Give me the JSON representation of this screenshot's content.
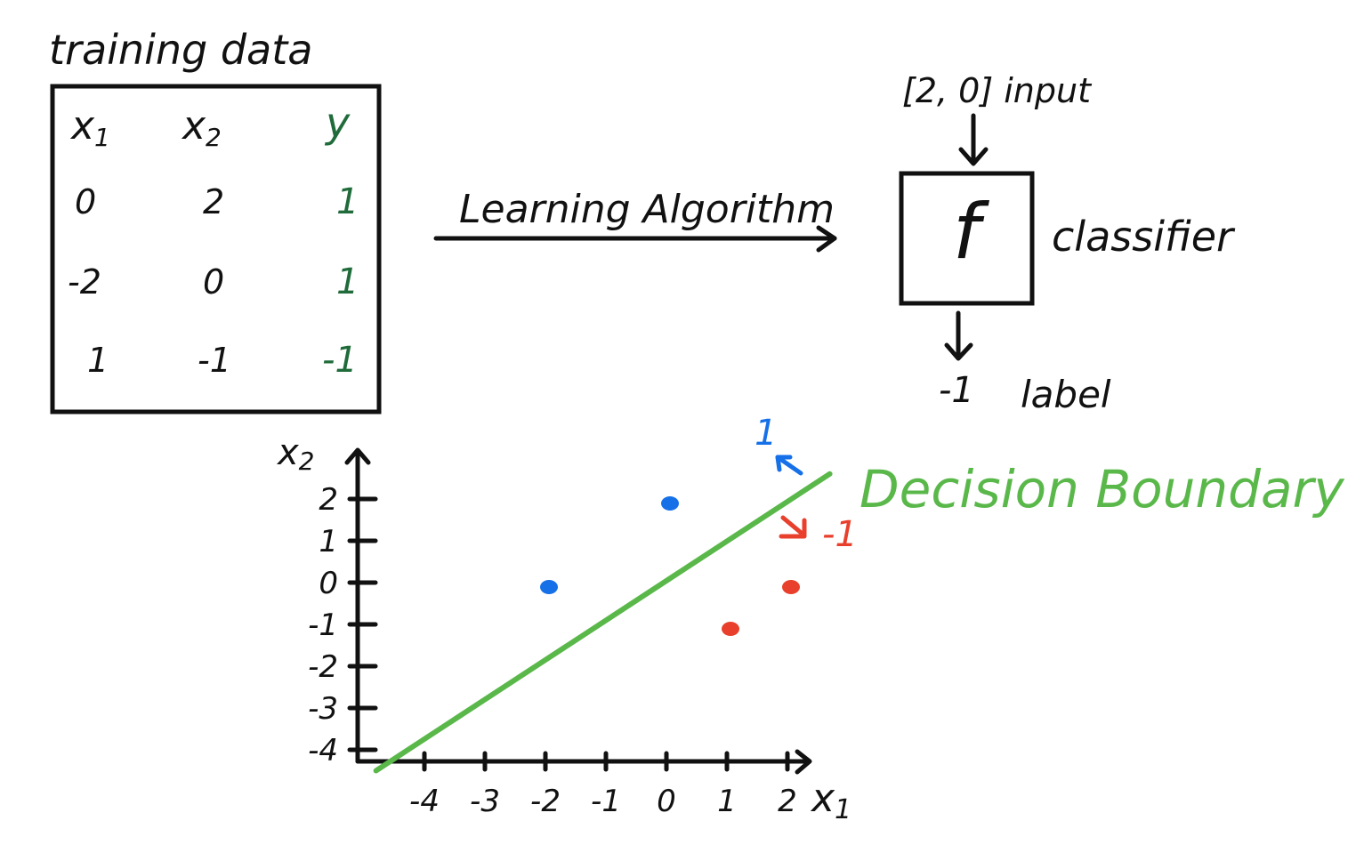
{
  "training": {
    "title": "training data",
    "headers": {
      "x1": "x",
      "x1_sub": "1",
      "x2": "x",
      "x2_sub": "2",
      "y": "y"
    },
    "rows": [
      {
        "x1": "0",
        "x2": "2",
        "y": "1"
      },
      {
        "x1": "-2",
        "x2": "0",
        "y": "1"
      },
      {
        "x1": "1",
        "x2": "-1",
        "y": "-1"
      }
    ]
  },
  "algorithm": {
    "label": "Learning Algorithm"
  },
  "classifier": {
    "input_text": "[2, 0] input",
    "function_symbol": "f",
    "label": "classifier",
    "output_value": "-1",
    "output_label": "label"
  },
  "plot": {
    "x_axis_label": "x",
    "x_axis_sub": "1",
    "y_axis_label": "x",
    "y_axis_sub": "2",
    "x_ticks": [
      "-4",
      "-3",
      "-2",
      "-1",
      "0",
      "1",
      "2"
    ],
    "y_ticks": [
      "2",
      "1",
      "0",
      "-1",
      "-2",
      "-3",
      "-4"
    ],
    "boundary_label": "Decision Boundary",
    "positive_side_label": "1",
    "negative_side_label": "-1",
    "points": [
      {
        "x": 0,
        "y": 2,
        "class": "positive"
      },
      {
        "x": -2,
        "y": 0,
        "class": "positive"
      },
      {
        "x": 1,
        "y": -1,
        "class": "negative"
      },
      {
        "x": 2,
        "y": 0,
        "class": "negative"
      }
    ],
    "boundary_line": {
      "from": [
        -4.8,
        -4.5
      ],
      "to": [
        2.7,
        2.6
      ]
    }
  },
  "colors": {
    "ink": "#111111",
    "label_green": "#1f6b3a",
    "boundary_green": "#5ab84a",
    "positive_blue": "#1670e8",
    "negative_red": "#e8402c"
  }
}
